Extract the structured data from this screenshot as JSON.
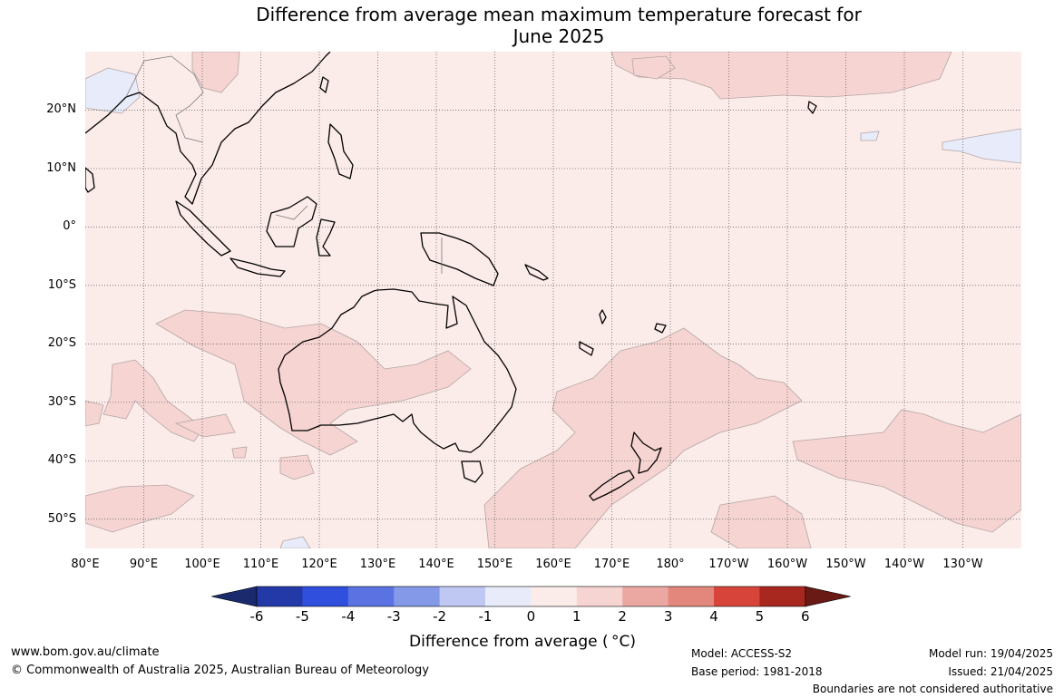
{
  "title_line1": "Difference from average mean maximum temperature forecast for",
  "title_line2": "June 2025",
  "map": {
    "lon_range": [
      80,
      240
    ],
    "lat_range": [
      -55,
      30
    ],
    "lat_labels": [
      "20°N",
      "10°N",
      "0°",
      "10°S",
      "20°S",
      "30°S",
      "40°S",
      "50°S"
    ],
    "lon_labels": [
      "80°E",
      "90°E",
      "100°E",
      "110°E",
      "120°E",
      "130°E",
      "140°E",
      "150°E",
      "160°E",
      "170°E",
      "180°",
      "170°W",
      "160°W",
      "150°W",
      "140°W",
      "130°W"
    ],
    "grid": true,
    "dominant_anomaly_range": "0 to 1",
    "colors": {
      "background_0_to_1": "#fbebe9",
      "anomaly_1_to_2": "#f5d4d2",
      "anomaly_minus1_to_0": "#e8ecfa",
      "coastline": "#000000",
      "borders": "#7a7a7a",
      "contour_line": "#b5a6a6"
    }
  },
  "colorbar": {
    "ticks": [
      "-6",
      "-5",
      "-4",
      "-3",
      "-2",
      "-1",
      "0",
      "1",
      "2",
      "3",
      "4",
      "5",
      "6"
    ],
    "colors": [
      "#1a2a6c",
      "#2439a8",
      "#2f4fdc",
      "#5a72e2",
      "#8499e8",
      "#bfc8f2",
      "#e8ecfa",
      "#fbebe9",
      "#f5d4d2",
      "#eba8a2",
      "#e3867c",
      "#d7453a",
      "#a8271e",
      "#6a1a14"
    ],
    "label": "Difference from average ( °C)"
  },
  "footer": {
    "url": "www.bom.gov.au/climate",
    "copyright": "© Commonwealth of Australia 2025, Australian Bureau of Meteorology",
    "model": "Model: ACCESS-S2",
    "base_period": "Base period: 1981-2018",
    "model_run": "Model run: 19/04/2025",
    "issued": "Issued: 21/04/2025",
    "disclaimer": "Boundaries are not considered authoritative"
  }
}
